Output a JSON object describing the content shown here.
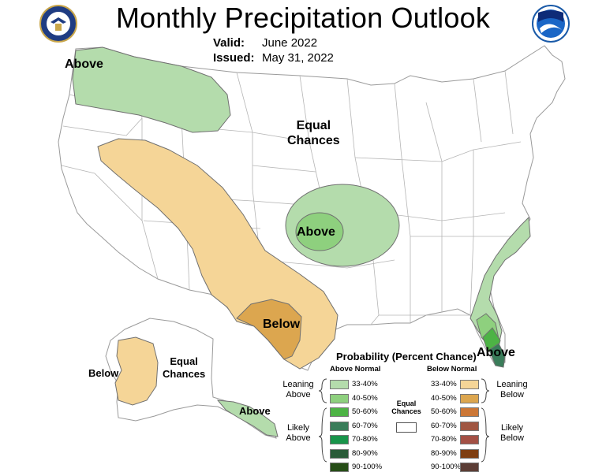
{
  "header": {
    "title": "Monthly Precipitation Outlook",
    "valid_label": "Valid:",
    "valid_value": "June 2022",
    "issued_label": "Issued:",
    "issued_value": "May 31, 2022",
    "left_logo": "doc-seal-icon",
    "right_logo": "noaa-logo-icon"
  },
  "map_labels": {
    "northwest": "Above",
    "equal_chances_1": "Equal",
    "equal_chances_2": "Chances",
    "midwest": "Above",
    "texas": "Below",
    "florida": "Above",
    "alaska_west": "Below",
    "alaska_equal_1": "Equal",
    "alaska_equal_2": "Chances",
    "alaska_southeast": "Above"
  },
  "colors": {
    "above_33_40": "#b4dcac",
    "above_40_50": "#8ed07e",
    "above_50_60": "#4db345",
    "above_60_70": "#3a7d5a",
    "above_70_80": "#18944a",
    "above_80_90": "#2a5b38",
    "above_90_100": "#264d17",
    "below_33_40": "#f5d597",
    "below_40_50": "#dca64f",
    "below_50_60": "#cc7736",
    "below_60_70": "#a05642",
    "below_70_80": "#a35045",
    "below_80_90": "#7f3f12",
    "below_90_100": "#5b3d35",
    "state_lines": "#b5b5b5"
  },
  "legend": {
    "title": "Probability (Percent Chance)",
    "above_header": "Above Normal",
    "below_header": "Below Normal",
    "equal_chances_1": "Equal",
    "equal_chances_2": "Chances",
    "leaning_above_1": "Leaning",
    "leaning_above_2": "Above",
    "likely_above_1": "Likely",
    "likely_above_2": "Above",
    "leaning_below_1": "Leaning",
    "leaning_below_2": "Below",
    "likely_below_1": "Likely",
    "likely_below_2": "Below",
    "ranges": [
      "33-40%",
      "40-50%",
      "50-60%",
      "60-70%",
      "70-80%",
      "80-90%",
      "90-100%"
    ]
  }
}
